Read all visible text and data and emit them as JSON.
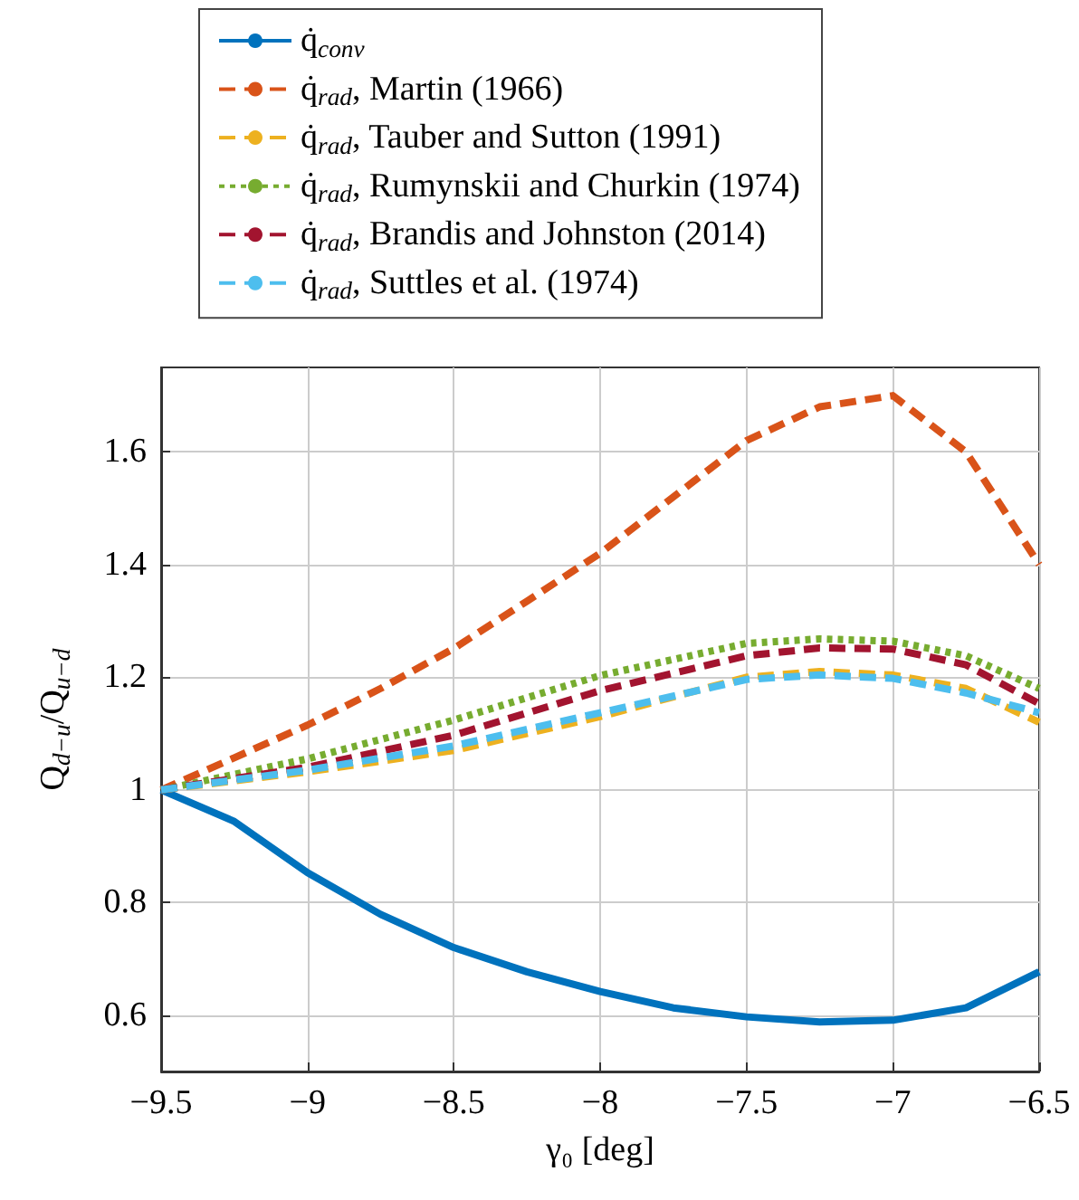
{
  "chart_data": {
    "type": "line",
    "xlabel": "γ₀ [deg]",
    "ylabel": "Q$_{d−u}$/Q$_{u−d}$",
    "x": [
      -9.5,
      -9.25,
      -9,
      -8.75,
      -8.5,
      -8.25,
      -8,
      -7.75,
      -7.5,
      -7.25,
      -7,
      -6.75,
      -6.5
    ],
    "series": [
      {
        "name": "q̇$_{conv}$",
        "color": "#0072bd",
        "line_style": "solid",
        "values": [
          1.0,
          0.944,
          0.853,
          0.779,
          0.72,
          0.677,
          0.642,
          0.613,
          0.597,
          0.588,
          0.591,
          0.613,
          0.677
        ]
      },
      {
        "name": "q̇$_{rad}$, Martin (1966)",
        "color": "#d95319",
        "line_style": "dashed",
        "values": [
          1.0,
          1.057,
          1.115,
          1.18,
          1.251,
          1.335,
          1.42,
          1.52,
          1.62,
          1.68,
          1.7,
          1.6,
          1.4
        ]
      },
      {
        "name": "q̇$_{rad}$, Tauber and Sutton (1991)",
        "color": "#edb120",
        "line_style": "dashed",
        "x": [
          -9.5,
          -9,
          -8.5,
          -8,
          -7.5,
          -7.25,
          -7,
          -6.75,
          -6.5
        ],
        "values": [
          1.0,
          1.032,
          1.07,
          1.13,
          1.2,
          1.21,
          1.204,
          1.18,
          1.12
        ]
      },
      {
        "name": "q̇$_{rad}$, Rumynskii and Churkin (1974)",
        "color": "#77ac30",
        "line_style": "dotted",
        "x": [
          -9.5,
          -9,
          -8.5,
          -8,
          -7.5,
          -7.25,
          -7,
          -6.75,
          -6.5
        ],
        "values": [
          1.0,
          1.055,
          1.124,
          1.203,
          1.26,
          1.268,
          1.264,
          1.238,
          1.18
        ]
      },
      {
        "name": "q̇$_{rad}$, Brandis and Johnston (2014)",
        "color": "#a2142f",
        "line_style": "dashed",
        "x": [
          -9.5,
          -9,
          -8.5,
          -8,
          -7.5,
          -7.25,
          -7,
          -6.75,
          -6.5
        ],
        "values": [
          1.0,
          1.04,
          1.097,
          1.176,
          1.238,
          1.252,
          1.25,
          1.222,
          1.153
        ]
      },
      {
        "name": "q̇$_{rad}$, Suttles et al. (1974)",
        "color": "#4dbeee",
        "line_style": "dashed",
        "x": [
          -9.5,
          -9,
          -8.5,
          -8,
          -7.5,
          -7.25,
          -7,
          -6.75,
          -6.5
        ],
        "values": [
          1.0,
          1.035,
          1.078,
          1.137,
          1.196,
          1.204,
          1.198,
          1.172,
          1.137
        ]
      }
    ],
    "xlim": [
      -9.5,
      -6.5
    ],
    "xticks": [
      -9.5,
      -9,
      -8.5,
      -8,
      -7.5,
      -7,
      -6.5
    ],
    "ylim": [
      0.5,
      1.75
    ],
    "yticks": [
      0.6,
      0.8,
      1,
      1.2,
      1.4,
      1.6
    ],
    "grid": true,
    "legend": "top",
    "marker": "none"
  }
}
